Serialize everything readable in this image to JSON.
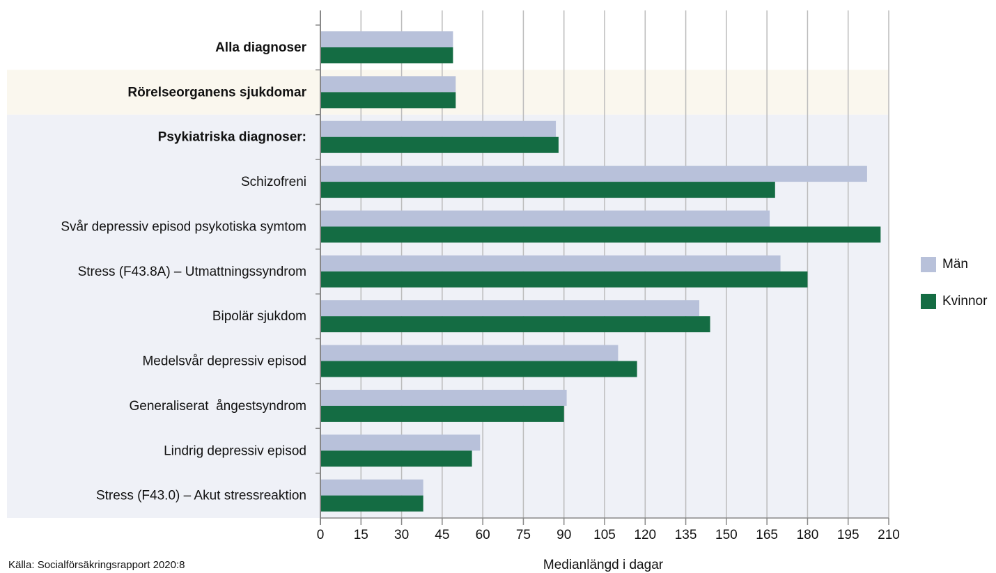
{
  "chart_data": {
    "type": "barh",
    "categories": [
      "Alla diagnoser",
      "Rörelseorganens sjukdomar",
      "Psykiatriska diagnoser:",
      "Schizofreni",
      "Svår depressiv episod psykotiska symtom",
      "Stress (F43.8A) – Utmattningssyndrom",
      "Bipolär sjukdom",
      "Medelsvår depressiv episod",
      "Generaliserat  ångestsyndrom",
      "Lindrig depressiv episod",
      "Stress (F43.0) – Akut stressreaktion"
    ],
    "series": [
      {
        "name": "Män",
        "color": "#b8c1da",
        "values": [
          49,
          50,
          87,
          202,
          166,
          170,
          140,
          110,
          91,
          59,
          38
        ]
      },
      {
        "name": "Kvinnor",
        "color": "#146c43",
        "values": [
          49,
          50,
          88,
          168,
          207,
          180,
          144,
          117,
          90,
          56,
          38
        ]
      }
    ],
    "xlim": [
      0,
      210
    ],
    "xticks": [
      0,
      15,
      30,
      45,
      60,
      75,
      90,
      105,
      120,
      135,
      150,
      165,
      180,
      195,
      210
    ],
    "xlabel": "Medianlängd i dagar",
    "source": "Källa: Socialförsäkringsrapport 2020:8",
    "grid": true,
    "legend": "right"
  }
}
